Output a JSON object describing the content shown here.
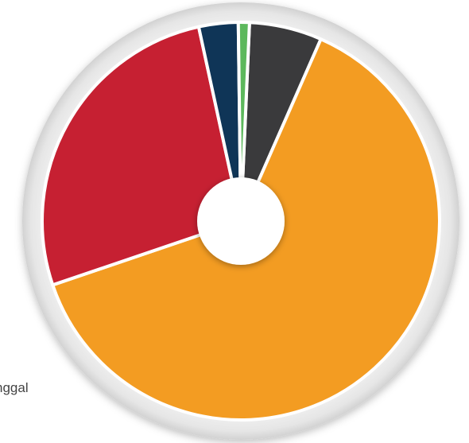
{
  "chart_data": {
    "type": "pie",
    "style": "donut",
    "title": "",
    "slices": [
      {
        "color": "#3a3a3c",
        "value": 5.9
      },
      {
        "color": "#f39c22",
        "value": 63.2
      },
      {
        "color": "#c62032",
        "value": 26.8
      },
      {
        "color": "#0f3557",
        "value": 3.2
      },
      {
        "color": "#5cb85c",
        "value": 0.9
      }
    ],
    "visible_text": [
      "nggal"
    ]
  }
}
